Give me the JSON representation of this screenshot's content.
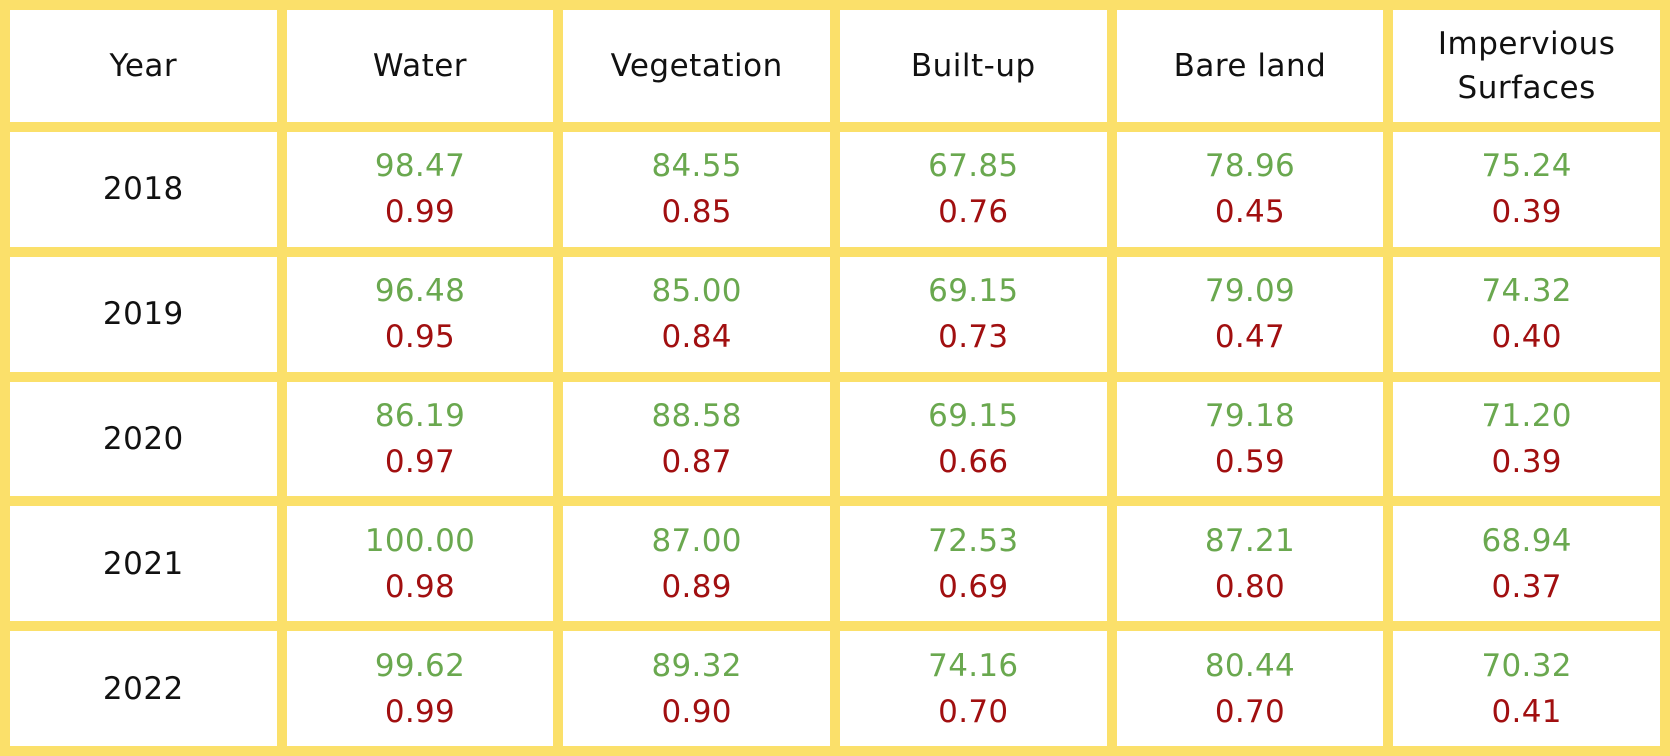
{
  "colors": {
    "grid": "#fbe06a",
    "cell_background": "#ffffff",
    "first_value": "#6aa84f",
    "second_value": "#a10f10",
    "text": "#111111"
  },
  "chart_data": {
    "type": "table",
    "columns": [
      "Year",
      "Water",
      "Vegetation",
      "Built-up",
      "Bare land",
      "Impervious Surfaces"
    ],
    "rows": [
      {
        "year": "2018",
        "cells": [
          {
            "a": "98.47",
            "b": "0.99"
          },
          {
            "a": "84.55",
            "b": "0.85"
          },
          {
            "a": "67.85",
            "b": "0.76"
          },
          {
            "a": "78.96",
            "b": "0.45"
          },
          {
            "a": "75.24",
            "b": "0.39"
          }
        ]
      },
      {
        "year": "2019",
        "cells": [
          {
            "a": "96.48",
            "b": "0.95"
          },
          {
            "a": "85.00",
            "b": "0.84"
          },
          {
            "a": "69.15",
            "b": "0.73"
          },
          {
            "a": "79.09",
            "b": "0.47"
          },
          {
            "a": "74.32",
            "b": "0.40"
          }
        ]
      },
      {
        "year": "2020",
        "cells": [
          {
            "a": "86.19",
            "b": "0.97"
          },
          {
            "a": "88.58",
            "b": "0.87"
          },
          {
            "a": "69.15",
            "b": "0.66"
          },
          {
            "a": "79.18",
            "b": "0.59"
          },
          {
            "a": "71.20",
            "b": "0.39"
          }
        ]
      },
      {
        "year": "2021",
        "cells": [
          {
            "a": "100.00",
            "b": "0.98"
          },
          {
            "a": "87.00",
            "b": "0.89"
          },
          {
            "a": "72.53",
            "b": "0.69"
          },
          {
            "a": "87.21",
            "b": "0.80"
          },
          {
            "a": "68.94",
            "b": "0.37"
          }
        ]
      },
      {
        "year": "2022",
        "cells": [
          {
            "a": "99.62",
            "b": "0.99"
          },
          {
            "a": "89.32",
            "b": "0.90"
          },
          {
            "a": "74.16",
            "b": "0.70"
          },
          {
            "a": "80.44",
            "b": "0.70"
          },
          {
            "a": "70.32",
            "b": "0.41"
          }
        ]
      }
    ]
  }
}
